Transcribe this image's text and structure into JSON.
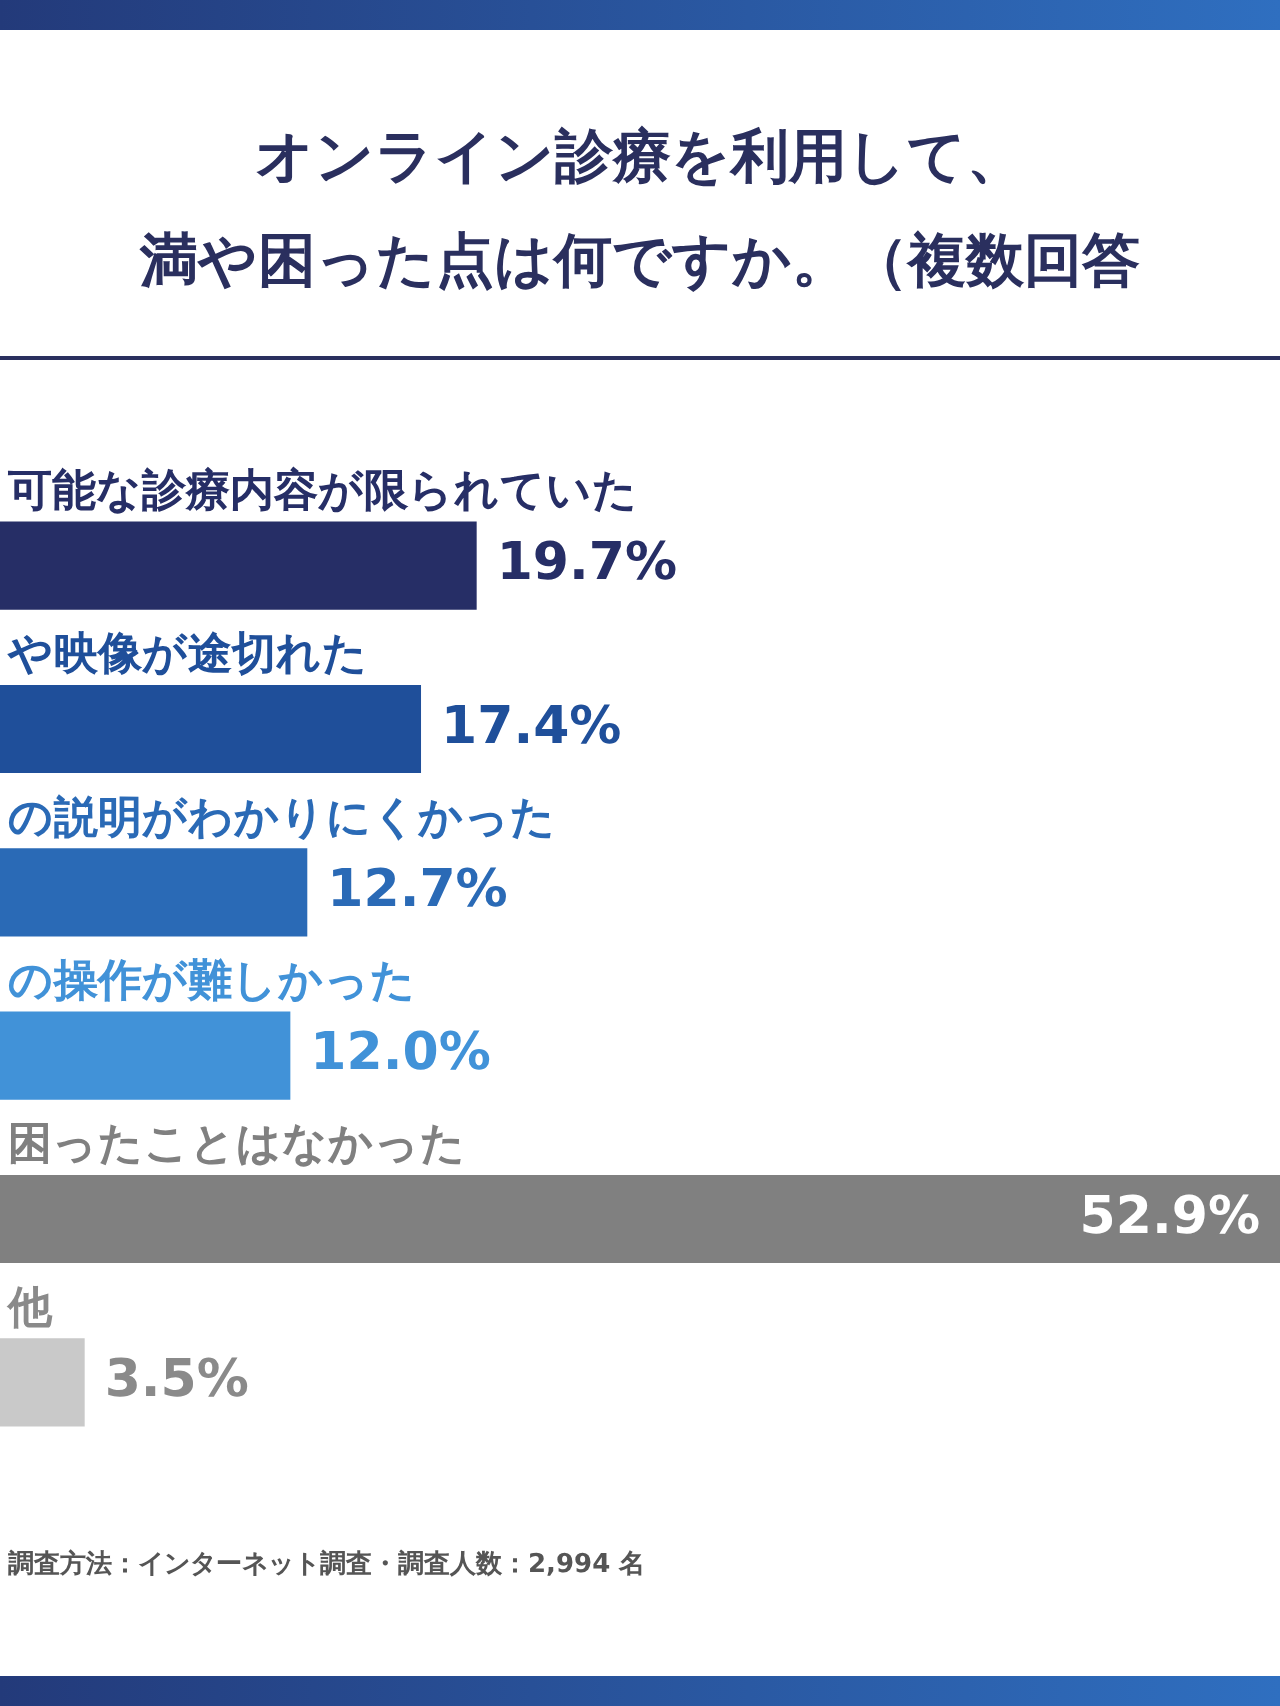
{
  "chart_data": {
    "type": "bar",
    "orientation": "horizontal",
    "title": "オンライン診療を利用して、満や困った点は何ですか。（複数回答",
    "categories": [
      "可能な診療内容が限られていた",
      "や映像が途切れた",
      "の説明がわかりにくかった",
      "の操作が難しかった",
      "困ったことはなかった",
      "他"
    ],
    "values": [
      19.7,
      17.4,
      12.7,
      12.0,
      52.9,
      3.5
    ],
    "colors": [
      "#262e66",
      "#1f4f9a",
      "#2a6ab6",
      "#4192d8",
      "#808080",
      "#c9c9c9"
    ],
    "value_labels": [
      "19.7%",
      "17.4%",
      "12.7%",
      "12.0%",
      "52.9%",
      "3.5%"
    ],
    "tick_labels": false,
    "legend": false,
    "annotations": [
      "調査方法：インターネット調査・調査人数：2,994 名"
    ]
  }
}
